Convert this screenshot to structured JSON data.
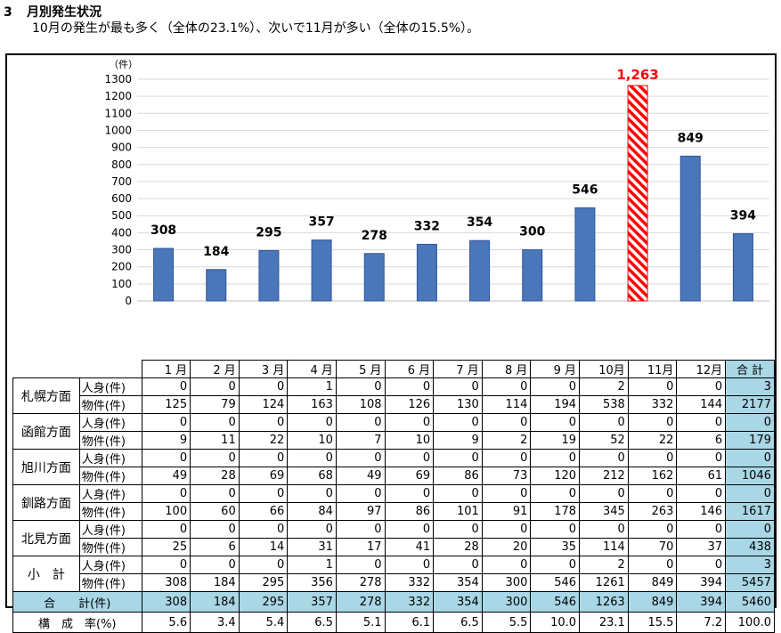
{
  "heading": {
    "number": "3",
    "title": "月別発生状況"
  },
  "subheading": "10月の発生が最も多く（全体の23.1%）、次いで11月が多い（全体の15.5%）。",
  "colors": {
    "bar": "#4a76ba",
    "bar_stroke": "#2f5597",
    "highlight": "#ff0000",
    "total_bg": "#a9d7e6"
  },
  "chart_data": {
    "type": "bar",
    "categories": [
      "1月",
      "2月",
      "3月",
      "4月",
      "5月",
      "6月",
      "7月",
      "8月",
      "9月",
      "10月",
      "11月",
      "12月"
    ],
    "values": [
      308,
      184,
      295,
      357,
      278,
      332,
      354,
      300,
      546,
      1263,
      849,
      394
    ],
    "value_labels": [
      "308",
      "184",
      "295",
      "357",
      "278",
      "332",
      "354",
      "300",
      "546",
      "1,263",
      "849",
      "394"
    ],
    "highlight_index": 9,
    "y_unit": "（件）",
    "ylim": [
      0,
      1300
    ],
    "yticks": [
      0,
      100,
      200,
      300,
      400,
      500,
      600,
      700,
      800,
      900,
      1000,
      1100,
      1200,
      1300
    ],
    "grid": true
  },
  "table": {
    "months": [
      "1 月",
      "2 月",
      "3 月",
      "4 月",
      "5 月",
      "6 月",
      "7 月",
      "8 月",
      "9 月",
      "10月",
      "11月",
      "12月"
    ],
    "total_header": "合 計",
    "regions": [
      {
        "name": "札幌方面",
        "rows": [
          {
            "type": "人身(件)",
            "values": [
              "0",
              "0",
              "0",
              "1",
              "0",
              "0",
              "0",
              "0",
              "0",
              "2",
              "0",
              "0"
            ],
            "total": "3"
          },
          {
            "type": "物件(件)",
            "values": [
              "125",
              "79",
              "124",
              "163",
              "108",
              "126",
              "130",
              "114",
              "194",
              "538",
              "332",
              "144"
            ],
            "total": "2177"
          }
        ]
      },
      {
        "name": "函館方面",
        "rows": [
          {
            "type": "人身(件)",
            "values": [
              "0",
              "0",
              "0",
              "0",
              "0",
              "0",
              "0",
              "0",
              "0",
              "0",
              "0",
              "0"
            ],
            "total": "0"
          },
          {
            "type": "物件(件)",
            "values": [
              "9",
              "11",
              "22",
              "10",
              "7",
              "10",
              "9",
              "2",
              "19",
              "52",
              "22",
              "6"
            ],
            "total": "179"
          }
        ]
      },
      {
        "name": "旭川方面",
        "rows": [
          {
            "type": "人身(件)",
            "values": [
              "0",
              "0",
              "0",
              "0",
              "0",
              "0",
              "0",
              "0",
              "0",
              "0",
              "0",
              "0"
            ],
            "total": "0"
          },
          {
            "type": "物件(件)",
            "values": [
              "49",
              "28",
              "69",
              "68",
              "49",
              "69",
              "86",
              "73",
              "120",
              "212",
              "162",
              "61"
            ],
            "total": "1046"
          }
        ]
      },
      {
        "name": "釧路方面",
        "rows": [
          {
            "type": "人身(件)",
            "values": [
              "0",
              "0",
              "0",
              "0",
              "0",
              "0",
              "0",
              "0",
              "0",
              "0",
              "0",
              "0"
            ],
            "total": "0"
          },
          {
            "type": "物件(件)",
            "values": [
              "100",
              "60",
              "66",
              "84",
              "97",
              "86",
              "101",
              "91",
              "178",
              "345",
              "263",
              "146"
            ],
            "total": "1617"
          }
        ]
      },
      {
        "name": "北見方面",
        "rows": [
          {
            "type": "人身(件)",
            "values": [
              "0",
              "0",
              "0",
              "0",
              "0",
              "0",
              "0",
              "0",
              "0",
              "0",
              "0",
              "0"
            ],
            "total": "0"
          },
          {
            "type": "物件(件)",
            "values": [
              "25",
              "6",
              "14",
              "31",
              "17",
              "41",
              "28",
              "20",
              "35",
              "114",
              "70",
              "37"
            ],
            "total": "438"
          }
        ]
      },
      {
        "name": "小　計",
        "rows": [
          {
            "type": "人身(件)",
            "values": [
              "0",
              "0",
              "0",
              "1",
              "0",
              "0",
              "0",
              "0",
              "0",
              "2",
              "0",
              "0"
            ],
            "total": "3"
          },
          {
            "type": "物件(件)",
            "values": [
              "308",
              "184",
              "295",
              "356",
              "278",
              "332",
              "354",
              "300",
              "546",
              "1261",
              "849",
              "394"
            ],
            "total": "5457"
          }
        ]
      }
    ],
    "grand_total": {
      "label": "合　　計(件)",
      "values": [
        "308",
        "184",
        "295",
        "357",
        "278",
        "332",
        "354",
        "300",
        "546",
        "1263",
        "849",
        "394"
      ],
      "total": "5460"
    },
    "ratio": {
      "label": "構　成　率(%)",
      "values": [
        "5.6",
        "3.4",
        "5.4",
        "6.5",
        "5.1",
        "6.1",
        "6.5",
        "5.5",
        "10.0",
        "23.1",
        "15.5",
        "7.2"
      ],
      "total": "100.0"
    }
  }
}
